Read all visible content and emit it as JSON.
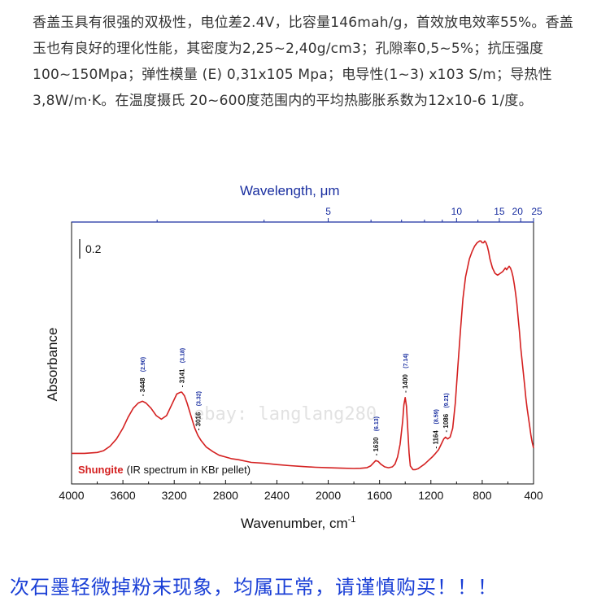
{
  "intro_text": "香盖玉具有很强的双极性，电位差2.4V，比容量146mah/g，首效放电效率55%。香盖玉也有良好的理化性能，其密度为2,25~2,40g/cm3；孔隙率0,5~5%；抗压强度100~150Mpa；弹性模量 (E) 0,31x105 Mpa；电导性(1~3) x103 S/m；导热性3,8W/m·K。在温度摄氏 20~600度范围内的平均热膨胀系数为12x10-6 1/度。",
  "footer_warning": "次石墨轻微掉粉末现象，均属正常，请谨慎购买！！！",
  "watermark": "ebay: langlang280",
  "colors": {
    "curve": "#d42020",
    "top_axis": "#1a2fa0",
    "text": "#333333",
    "footer": "#1a3fd6"
  },
  "chart_data": {
    "type": "line",
    "title": "",
    "xlabel": "Wavenumber, cm",
    "xlabel_superscript": "-1",
    "ylabel": "Absorbance",
    "xlim": [
      4000,
      400
    ],
    "ylim": [
      0,
      1.36
    ],
    "x_ticks": [
      "4000",
      "3600",
      "3200",
      "2800",
      "2400",
      "2000",
      "1600",
      "1200",
      "800",
      "400"
    ],
    "top_axis": {
      "label": "Wavelength, ",
      "label_unit": "μm",
      "ticks": [
        "5",
        "10",
        "15",
        "20",
        "25"
      ],
      "tick_values_um": [
        5,
        10,
        15,
        20,
        25
      ]
    },
    "scale_bar_label": "0.2",
    "scale_bar_value": 0.2,
    "legend": {
      "name": "Shungite",
      "description": "(IR spectrum in KBr pellet)",
      "position": "bottom-left"
    },
    "annotations": [
      {
        "wavenumber": 3448,
        "label": "3448",
        "wavelength": "(2.90)"
      },
      {
        "wavenumber": 3141,
        "label": "3141",
        "wavelength": "(3.18)"
      },
      {
        "wavenumber": 3016,
        "label": "3016",
        "wavelength": "(3.32)"
      },
      {
        "wavenumber": 1630,
        "label": "1630",
        "wavelength": "(6.13)"
      },
      {
        "wavenumber": 1400,
        "label": "1400",
        "wavelength": "(7.14)"
      },
      {
        "wavenumber": 1164,
        "label": "1164",
        "wavelength": "(8.59)"
      },
      {
        "wavenumber": 1086,
        "label": "1086",
        "wavelength": "(9.21)"
      }
    ],
    "series": [
      {
        "name": "Shungite",
        "x": [
          4000,
          3900,
          3800,
          3750,
          3700,
          3650,
          3600,
          3560,
          3520,
          3480,
          3448,
          3420,
          3380,
          3340,
          3300,
          3260,
          3220,
          3180,
          3150,
          3141,
          3120,
          3100,
          3070,
          3040,
          3016,
          2990,
          2950,
          2900,
          2850,
          2800,
          2750,
          2700,
          2600,
          2500,
          2400,
          2300,
          2200,
          2100,
          2000,
          1900,
          1800,
          1750,
          1700,
          1670,
          1650,
          1630,
          1610,
          1590,
          1560,
          1530,
          1500,
          1480,
          1460,
          1440,
          1420,
          1410,
          1400,
          1390,
          1380,
          1370,
          1360,
          1340,
          1320,
          1300,
          1280,
          1250,
          1220,
          1190,
          1164,
          1140,
          1120,
          1100,
          1086,
          1070,
          1050,
          1030,
          1010,
          990,
          970,
          950,
          930,
          900,
          880,
          860,
          840,
          820,
          810,
          800,
          790,
          780,
          770,
          760,
          750,
          740,
          720,
          700,
          680,
          660,
          640,
          630,
          620,
          610,
          600,
          590,
          580,
          570,
          560,
          550,
          540,
          530,
          520,
          510,
          500,
          490,
          480,
          470,
          460,
          450,
          440,
          430,
          420,
          410,
          400
        ],
        "y": [
          0.12,
          0.12,
          0.125,
          0.135,
          0.16,
          0.2,
          0.26,
          0.32,
          0.37,
          0.4,
          0.41,
          0.4,
          0.37,
          0.33,
          0.31,
          0.33,
          0.39,
          0.45,
          0.46,
          0.46,
          0.44,
          0.4,
          0.33,
          0.26,
          0.22,
          0.19,
          0.155,
          0.13,
          0.11,
          0.1,
          0.09,
          0.085,
          0.07,
          0.065,
          0.058,
          0.052,
          0.047,
          0.043,
          0.04,
          0.038,
          0.036,
          0.037,
          0.04,
          0.05,
          0.065,
          0.08,
          0.075,
          0.06,
          0.045,
          0.04,
          0.045,
          0.06,
          0.1,
          0.17,
          0.3,
          0.39,
          0.43,
          0.38,
          0.25,
          0.12,
          0.05,
          0.03,
          0.03,
          0.035,
          0.045,
          0.06,
          0.08,
          0.1,
          0.12,
          0.14,
          0.17,
          0.2,
          0.21,
          0.2,
          0.21,
          0.26,
          0.4,
          0.6,
          0.8,
          0.98,
          1.1,
          1.2,
          1.24,
          1.27,
          1.29,
          1.3,
          1.3,
          1.29,
          1.29,
          1.3,
          1.29,
          1.27,
          1.24,
          1.2,
          1.15,
          1.12,
          1.11,
          1.12,
          1.13,
          1.14,
          1.15,
          1.14,
          1.15,
          1.16,
          1.15,
          1.13,
          1.1,
          1.06,
          1.01,
          0.95,
          0.87,
          0.8,
          0.71,
          0.64,
          0.57,
          0.5,
          0.43,
          0.37,
          0.32,
          0.27,
          0.22,
          0.18,
          0.15
        ]
      }
    ]
  }
}
